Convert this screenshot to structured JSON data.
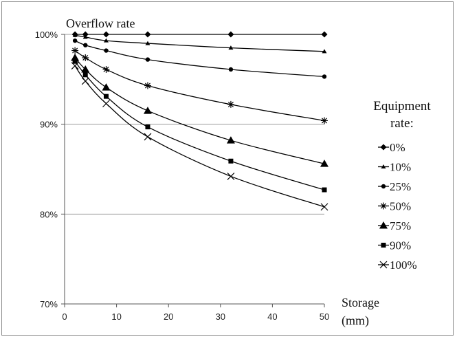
{
  "chart_data": {
    "type": "line",
    "title": "",
    "ylabel": "Overflow rate",
    "xlabel_lines": [
      "Storage",
      "(mm)"
    ],
    "x_ticks": [
      0,
      10,
      20,
      30,
      40,
      50
    ],
    "y_ticks": [
      70,
      80,
      90,
      100
    ],
    "y_tick_labels": [
      "70%",
      "80%",
      "90%",
      "100%"
    ],
    "xlim": [
      0,
      50
    ],
    "ylim": [
      70,
      100
    ],
    "grid": "horizontal",
    "legend_title_lines": [
      "Equipment",
      "rate:"
    ],
    "legend_position": "right",
    "x": [
      2,
      4,
      8,
      16,
      32,
      50
    ],
    "series": [
      {
        "name": "0%",
        "marker": "diamond",
        "values": [
          100,
          100,
          100,
          100,
          100,
          100
        ]
      },
      {
        "name": "10%",
        "marker": "small-triangle",
        "values": [
          99.9,
          99.7,
          99.3,
          99.0,
          98.5,
          98.1
        ]
      },
      {
        "name": "25%",
        "marker": "circle",
        "values": [
          99.3,
          98.8,
          98.2,
          97.2,
          96.1,
          95.3
        ]
      },
      {
        "name": "50%",
        "marker": "star",
        "values": [
          98.2,
          97.4,
          96.1,
          94.3,
          92.2,
          90.4
        ]
      },
      {
        "name": "75%",
        "marker": "triangle",
        "values": [
          97.4,
          96.1,
          94.1,
          91.5,
          88.2,
          85.6
        ]
      },
      {
        "name": "90%",
        "marker": "square",
        "values": [
          97.0,
          95.5,
          93.1,
          89.7,
          85.9,
          82.7
        ]
      },
      {
        "name": "100%",
        "marker": "x",
        "values": [
          96.5,
          94.8,
          92.3,
          88.6,
          84.2,
          80.8
        ]
      }
    ]
  }
}
